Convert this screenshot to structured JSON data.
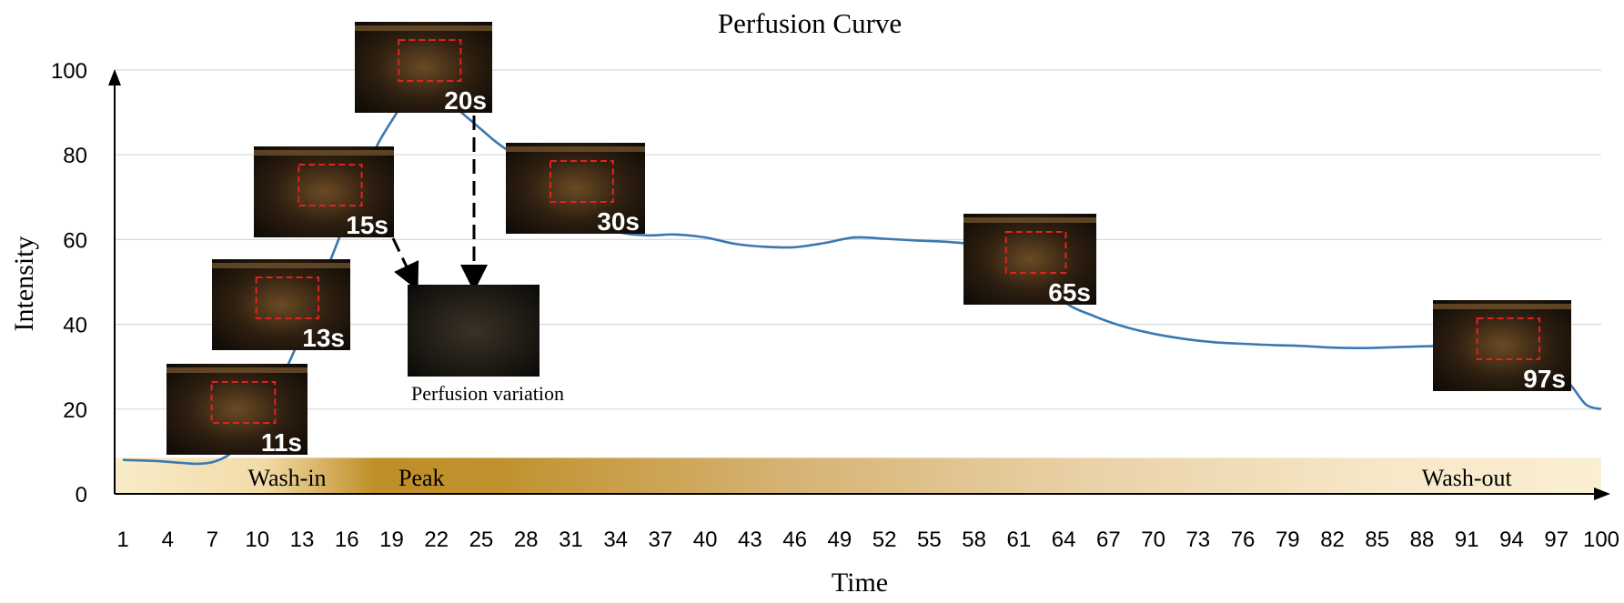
{
  "chart_data": {
    "type": "line",
    "title": "Perfusion Curve",
    "xlabel": "Time",
    "ylabel": "Intensity",
    "x_ticks": [
      1,
      4,
      7,
      10,
      13,
      16,
      19,
      22,
      25,
      28,
      31,
      34,
      37,
      40,
      43,
      46,
      49,
      52,
      55,
      58,
      61,
      64,
      67,
      70,
      73,
      76,
      79,
      82,
      85,
      88,
      91,
      94,
      97,
      100
    ],
    "y_ticks": [
      0,
      20,
      40,
      60,
      80,
      100
    ],
    "xlim": [
      1,
      100
    ],
    "ylim": [
      0,
      100
    ],
    "grid": "horizontal",
    "series": [
      {
        "color": "#3a78b0",
        "x": [
          1,
          3,
          5,
          6,
          7,
          8,
          9,
          10,
          11,
          12,
          13,
          14,
          15,
          16,
          17,
          18,
          19,
          20,
          21,
          22,
          23,
          24,
          25,
          26,
          27,
          28,
          29,
          30,
          32,
          34,
          36,
          38,
          40,
          42,
          44,
          46,
          48,
          50,
          52,
          54,
          56,
          58,
          60,
          62,
          64,
          66,
          68,
          70,
          72,
          74,
          76,
          78,
          80,
          82,
          84,
          86,
          88,
          90,
          92,
          94,
          96,
          97,
          98,
          99,
          100
        ],
        "y": [
          8,
          7.8,
          7.3,
          7.1,
          7.5,
          9,
          12,
          17,
          23,
          30,
          38,
          47,
          56,
          65,
          74,
          82,
          88,
          93,
          95,
          94,
          92,
          89,
          86,
          83,
          80.5,
          78,
          75,
          71.5,
          65.5,
          62,
          61,
          61.2,
          60.5,
          59,
          58.3,
          58.2,
          59.2,
          60.5,
          60.2,
          59.8,
          59.5,
          58.9,
          58,
          54,
          45.5,
          42,
          39.5,
          37.8,
          36.6,
          35.8,
          35.4,
          35.1,
          34.9,
          34.5,
          34.4,
          34.6,
          34.8,
          35,
          35.5,
          34.5,
          32,
          29,
          25.5,
          21,
          20
        ]
      }
    ],
    "phase_band": {
      "range": [
        0,
        8.5
      ],
      "labels": [
        {
          "text": "Wash-in",
          "x": 12
        },
        {
          "text": "Peak",
          "x": 21
        },
        {
          "text": "Wash-out",
          "x": 91
        }
      ]
    },
    "annotations": [
      {
        "label": "11s",
        "point_x": 11
      },
      {
        "label": "13s",
        "point_x": 13
      },
      {
        "label": "15s",
        "point_x": 15
      },
      {
        "label": "20s",
        "point_x": 20
      },
      {
        "label": "30s",
        "point_x": 30
      },
      {
        "label": "65s",
        "point_x": 65
      },
      {
        "label": "97s",
        "point_x": 97
      }
    ],
    "perfusion_variation_label": "Perfusion variation"
  }
}
